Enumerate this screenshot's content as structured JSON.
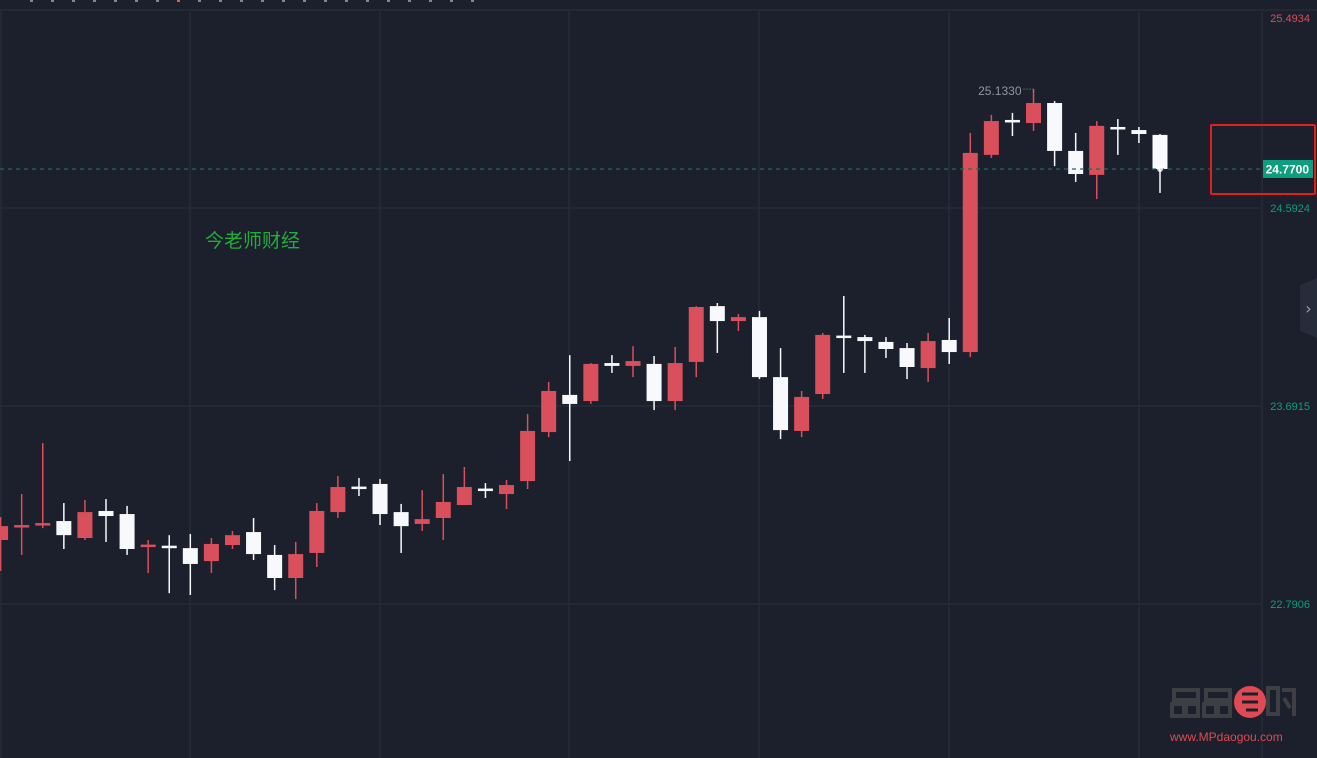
{
  "chart_data": {
    "type": "candlestick",
    "title": "",
    "xlabel": "",
    "ylabel": "",
    "y_tick_labels": [
      "25.4934",
      "24.5924",
      "23.6915",
      "22.7906"
    ],
    "y_ticks": [
      25.4934,
      24.5924,
      23.6915,
      22.7906
    ],
    "ylim": [
      22.35,
      25.54
    ],
    "grid": true,
    "up_color": "#d94f5c",
    "down_color": "#f8f9fd",
    "last_price": 24.77,
    "last_price_label": "24.7700",
    "last_price_color": "#0c9e7f",
    "max_price_label": "25.1330",
    "candles": [
      [
        23.082,
        23.186,
        22.941,
        23.145
      ],
      [
        23.145,
        23.291,
        23.014,
        23.15
      ],
      [
        23.155,
        23.523,
        23.136,
        23.159
      ],
      [
        23.168,
        23.25,
        23.041,
        23.104
      ],
      [
        23.091,
        23.264,
        23.082,
        23.209
      ],
      [
        23.214,
        23.268,
        23.073,
        23.191
      ],
      [
        23.2,
        23.237,
        23.014,
        23.041
      ],
      [
        23.057,
        23.082,
        22.932,
        23.061
      ],
      [
        23.056,
        23.104,
        22.84,
        23.052
      ],
      [
        23.045,
        23.109,
        22.832,
        22.973
      ],
      [
        22.986,
        23.091,
        22.932,
        23.064
      ],
      [
        23.059,
        23.123,
        23.041,
        23.104
      ],
      [
        23.118,
        23.182,
        22.991,
        23.018
      ],
      [
        23.014,
        23.059,
        22.854,
        22.909
      ],
      [
        22.909,
        23.073,
        22.813,
        23.018
      ],
      [
        23.023,
        23.25,
        22.959,
        23.214
      ],
      [
        23.209,
        23.373,
        23.182,
        23.323
      ],
      [
        23.325,
        23.364,
        23.282,
        23.321
      ],
      [
        23.337,
        23.359,
        23.15,
        23.2
      ],
      [
        23.209,
        23.246,
        23.023,
        23.145
      ],
      [
        23.155,
        23.309,
        23.123,
        23.177
      ],
      [
        23.182,
        23.382,
        23.082,
        23.255
      ],
      [
        23.241,
        23.414,
        23.241,
        23.323
      ],
      [
        23.316,
        23.341,
        23.273,
        23.312
      ],
      [
        23.291,
        23.355,
        23.223,
        23.332
      ],
      [
        23.35,
        23.655,
        23.314,
        23.578
      ],
      [
        23.573,
        23.801,
        23.55,
        23.76
      ],
      [
        23.742,
        23.923,
        23.441,
        23.701
      ],
      [
        23.714,
        23.887,
        23.701,
        23.883
      ],
      [
        23.887,
        23.923,
        23.842,
        23.874
      ],
      [
        23.874,
        23.964,
        23.823,
        23.896
      ],
      [
        23.883,
        23.919,
        23.673,
        23.714
      ],
      [
        23.714,
        23.96,
        23.673,
        23.887
      ],
      [
        23.892,
        24.146,
        23.823,
        24.142
      ],
      [
        24.146,
        24.16,
        23.933,
        24.078
      ],
      [
        24.078,
        24.11,
        24.033,
        24.096
      ],
      [
        24.096,
        24.124,
        23.814,
        23.823
      ],
      [
        23.823,
        23.955,
        23.541,
        23.582
      ],
      [
        23.578,
        23.76,
        23.55,
        23.733
      ],
      [
        23.746,
        24.024,
        23.724,
        24.015
      ],
      [
        24.012,
        24.192,
        23.842,
        24.008
      ],
      [
        24.005,
        24.015,
        23.842,
        23.987
      ],
      [
        23.983,
        24.005,
        23.91,
        23.951
      ],
      [
        23.955,
        23.978,
        23.814,
        23.869
      ],
      [
        23.864,
        24.024,
        23.801,
        23.987
      ],
      [
        23.992,
        24.092,
        23.883,
        23.937
      ],
      [
        23.937,
        24.934,
        23.914,
        24.843
      ],
      [
        24.834,
        25.016,
        24.82,
        24.988
      ],
      [
        24.993,
        25.025,
        24.92,
        24.984
      ],
      [
        24.979,
        25.133,
        24.943,
        25.07
      ],
      [
        25.07,
        25.079,
        24.783,
        24.852
      ],
      [
        24.852,
        24.934,
        24.711,
        24.747
      ],
      [
        24.743,
        24.988,
        24.633,
        24.966
      ],
      [
        24.961,
        24.997,
        24.834,
        24.952
      ],
      [
        24.947,
        24.961,
        24.888,
        24.929
      ],
      [
        24.925,
        24.929,
        24.661,
        24.77
      ]
    ]
  },
  "watermark_text": "今老师财经",
  "logo": {
    "mark": "品品导购",
    "url": "www.MPdaogou.com"
  },
  "side_tab_icon": "chevron-right-icon",
  "colors": {
    "background": "#1b202c",
    "grid": "#242c38",
    "axis_top_label": "#d94f5c",
    "axis_label": "#0c9e7f",
    "highlight_box": "#e0201c"
  }
}
